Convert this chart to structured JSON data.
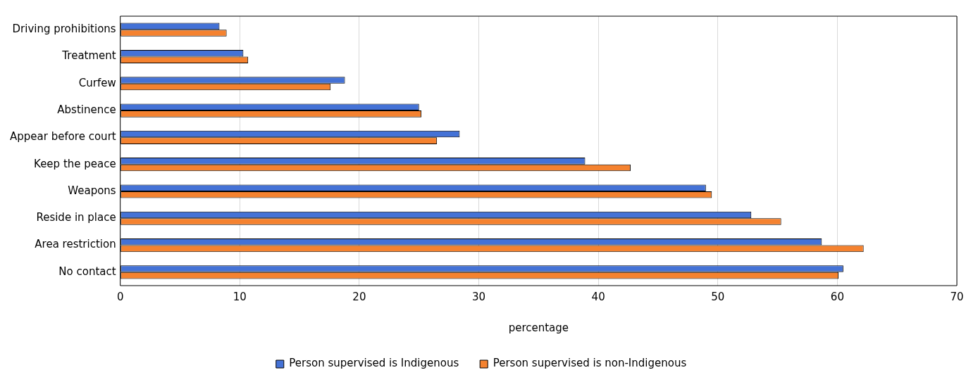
{
  "chart_data": {
    "type": "bar",
    "orientation": "horizontal",
    "xlabel": "percentage",
    "categories": [
      "Driving prohibitions",
      "Treatment",
      "Curfew",
      "Abstinence",
      "Appear before court",
      "Keep the peace",
      "Weapons",
      "Reside in place",
      "Area restriction",
      "No contact"
    ],
    "series": [
      {
        "name": "Person supervised is Indigenous",
        "color": "#4472d6",
        "values": [
          8.3,
          10.3,
          18.8,
          25.0,
          28.4,
          38.9,
          49.0,
          52.8,
          58.7,
          60.5
        ]
      },
      {
        "name": "Person supervised is non-Indigenous",
        "color": "#f5822f",
        "values": [
          8.9,
          10.7,
          17.6,
          25.2,
          26.5,
          42.7,
          49.5,
          55.3,
          62.2,
          60.1
        ]
      }
    ],
    "xlim": [
      0,
      70
    ],
    "xticks": [
      0,
      10,
      20,
      30,
      40,
      50,
      60,
      70
    ],
    "grid": "x",
    "legend": "bottom"
  }
}
